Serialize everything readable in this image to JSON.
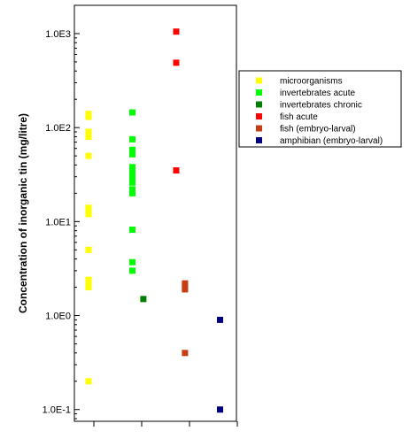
{
  "chart_data": {
    "type": "scatter",
    "title": "",
    "xlabel": "",
    "ylabel": "Concentration of inorganic tin (mg/litre)",
    "yscale": "log",
    "ylim": [
      0.075,
      2000
    ],
    "yticks": [
      {
        "value": 1000,
        "label": "1.0E3"
      },
      {
        "value": 100,
        "label": "1.0E2"
      },
      {
        "value": 10,
        "label": "1.0E1"
      },
      {
        "value": 1,
        "label": "1.0E0"
      },
      {
        "value": 0.1,
        "label": "1.0E-1"
      }
    ],
    "grid": false,
    "legend_position": "right",
    "series": [
      {
        "name": "microorganisms",
        "color": "#ffff00",
        "x": 1,
        "values": [
          140,
          130,
          90,
          85,
          80,
          50,
          14,
          13,
          12,
          5,
          2.4,
          2.2,
          2.0,
          0.2
        ]
      },
      {
        "name": "invertebrates acute",
        "color": "#00ff00",
        "x": 2,
        "values": [
          145,
          75,
          58,
          52,
          38,
          35,
          32,
          30,
          28,
          26,
          22,
          20,
          8.2,
          3.7,
          3.0
        ]
      },
      {
        "name": "invertebrates chronic",
        "color": "#008000",
        "x": 2.25,
        "values": [
          1.5
        ]
      },
      {
        "name": "fish acute",
        "color": "#ff0000",
        "x": 3,
        "values": [
          1050,
          490,
          35
        ]
      },
      {
        "name": "fish (embryo-larval)",
        "color": "#c83c14",
        "x": 3.2,
        "values": [
          2.2,
          2.0,
          1.9,
          0.4
        ]
      },
      {
        "name": "amphibian (embryo-larval)",
        "color": "#000080",
        "x": 4,
        "values": [
          0.9,
          0.1
        ]
      }
    ]
  }
}
